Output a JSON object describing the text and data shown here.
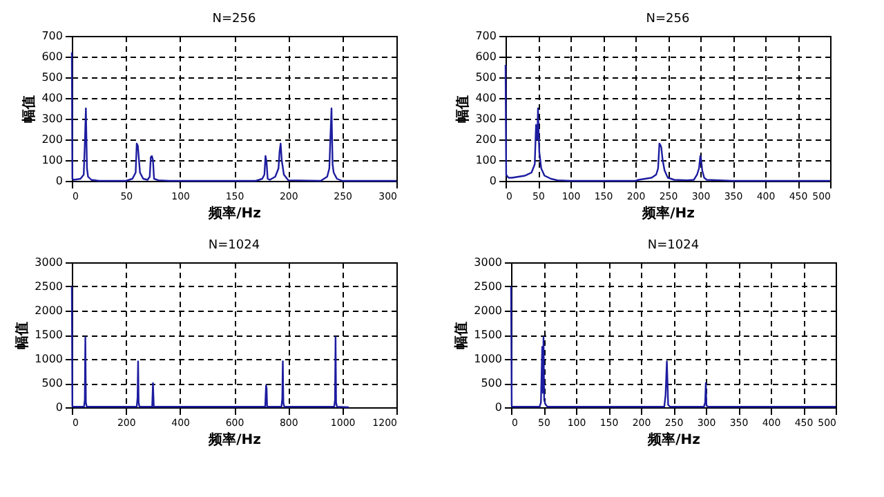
{
  "chart_data": [
    {
      "type": "line",
      "title": "N=256",
      "xlabel": "频率/Hz",
      "ylabel": "幅值",
      "xlim": [
        0,
        300
      ],
      "xticks": [
        0,
        50,
        100,
        150,
        200,
        250,
        300
      ],
      "ylim": [
        0,
        700
      ],
      "yticks": [
        0,
        100,
        200,
        300,
        400,
        500,
        600,
        700
      ],
      "grid": true,
      "x": [
        0,
        0.5,
        2,
        8,
        11,
        12,
        13,
        14,
        15,
        18,
        25,
        50,
        56,
        59,
        60,
        61,
        63,
        66,
        70,
        72,
        73,
        74,
        75,
        76,
        80,
        90,
        170,
        176,
        178,
        179,
        180,
        181,
        183,
        188,
        191,
        192,
        193,
        194,
        196,
        200,
        230,
        236,
        238,
        239,
        240,
        241,
        242,
        245,
        250,
        300
      ],
      "series": [
        {
          "color": "#1c1ca0",
          "values": [
            620,
            10,
            5,
            10,
            30,
            175,
            350,
            60,
            20,
            5,
            0,
            0,
            10,
            40,
            180,
            170,
            40,
            10,
            5,
            20,
            115,
            120,
            100,
            10,
            3,
            0,
            0,
            10,
            30,
            120,
            90,
            10,
            5,
            20,
            60,
            140,
            180,
            100,
            30,
            3,
            0,
            20,
            60,
            210,
            350,
            80,
            40,
            10,
            0,
            0
          ]
        }
      ]
    },
    {
      "type": "line",
      "title": "N=256",
      "xlabel": "频率/Hz",
      "ylabel": "幅值",
      "xlim": [
        0,
        500
      ],
      "xticks": [
        0,
        50,
        100,
        150,
        200,
        250,
        300,
        350,
        400,
        450,
        500
      ],
      "ylim": [
        0,
        700
      ],
      "yticks": [
        0,
        100,
        200,
        300,
        400,
        500,
        600,
        700
      ],
      "grid": true,
      "x": [
        0,
        1,
        3,
        5,
        10,
        20,
        30,
        40,
        45,
        47,
        49,
        50,
        51,
        52,
        55,
        60,
        70,
        80,
        100,
        200,
        205,
        225,
        232,
        235,
        237,
        239,
        240,
        242,
        245,
        250,
        260,
        280,
        290,
        295,
        298,
        300,
        301,
        303,
        306,
        310,
        330,
        350,
        500
      ],
      "series": [
        {
          "color": "#1c1ca0",
          "values": [
            560,
            30,
            20,
            15,
            15,
            20,
            25,
            40,
            80,
            270,
            200,
            350,
            230,
            140,
            60,
            25,
            10,
            3,
            0,
            0,
            5,
            15,
            30,
            60,
            180,
            170,
            160,
            100,
            50,
            15,
            5,
            3,
            5,
            30,
            60,
            120,
            110,
            50,
            15,
            5,
            3,
            0,
            0
          ]
        }
      ]
    },
    {
      "type": "line",
      "title": "N=1024",
      "xlabel": "频率/Hz",
      "ylabel": "幅值",
      "xlim": [
        0,
        1200
      ],
      "xticks": [
        0,
        200,
        400,
        600,
        800,
        1000,
        1200
      ],
      "ylim": [
        0,
        3000
      ],
      "yticks": [
        0,
        500,
        1000,
        1500,
        2000,
        2500,
        3000
      ],
      "grid": true,
      "x": [
        0,
        2,
        5,
        45,
        48,
        50,
        52,
        55,
        240,
        243,
        245,
        247,
        250,
        297,
        300,
        303,
        715,
        718,
        720,
        722,
        725,
        775,
        778,
        780,
        782,
        785,
        970,
        973,
        975,
        977,
        980,
        1024
      ],
      "series": [
        {
          "color": "#1c1ca0",
          "values": [
            2500,
            20,
            10,
            10,
            150,
            1450,
            100,
            10,
            10,
            200,
            950,
            100,
            10,
            10,
            500,
            10,
            10,
            450,
            400,
            10,
            10,
            10,
            180,
            950,
            100,
            10,
            10,
            150,
            1450,
            100,
            10,
            0
          ]
        }
      ]
    },
    {
      "type": "line",
      "title": "N=1024",
      "xlabel": "频率/Hz",
      "ylabel": "幅值",
      "xlim": [
        0,
        500
      ],
      "xticks": [
        0,
        50,
        100,
        150,
        200,
        250,
        300,
        350,
        400,
        450,
        500
      ],
      "ylim": [
        0,
        3000
      ],
      "yticks": [
        0,
        500,
        1000,
        1500,
        2000,
        2500,
        3000
      ],
      "grid": true,
      "x": [
        0,
        1,
        3,
        44,
        46,
        48,
        49,
        50,
        51,
        53,
        56,
        236,
        238,
        240,
        242,
        245,
        297,
        299,
        300,
        301,
        304,
        500
      ],
      "series": [
        {
          "color": "#1c1ca0",
          "values": [
            2500,
            20,
            10,
            10,
            100,
            1250,
            300,
            1450,
            150,
            60,
            10,
            10,
            250,
            950,
            50,
            10,
            10,
            100,
            500,
            30,
            10,
            10
          ]
        }
      ]
    }
  ]
}
